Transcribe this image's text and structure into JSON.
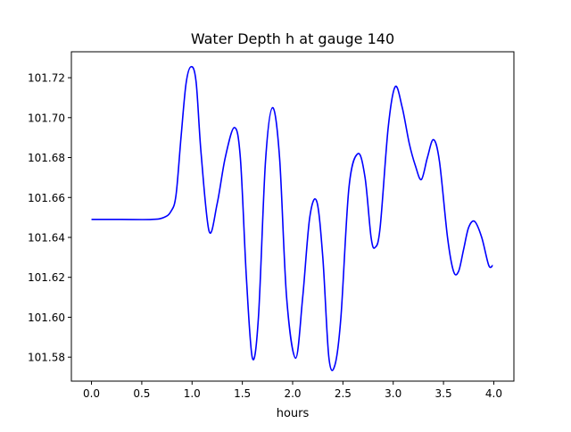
{
  "chart_data": {
    "type": "line",
    "title": "Water Depth h at gauge 140",
    "xlabel": "hours",
    "ylabel": "",
    "xlim": [
      -0.2,
      4.2
    ],
    "ylim": [
      101.568,
      101.733
    ],
    "xticks": [
      0.0,
      0.5,
      1.0,
      1.5,
      2.0,
      2.5,
      3.0,
      3.5,
      4.0
    ],
    "xtick_labels": [
      "0.0",
      "0.5",
      "1.0",
      "1.5",
      "2.0",
      "2.5",
      "3.0",
      "3.5",
      "4.0"
    ],
    "yticks": [
      101.58,
      101.6,
      101.62,
      101.64,
      101.66,
      101.68,
      101.7,
      101.72
    ],
    "ytick_labels": [
      "101.58",
      "101.60",
      "101.62",
      "101.64",
      "101.66",
      "101.68",
      "101.70",
      "101.72"
    ],
    "grid": false,
    "series": [
      {
        "name": "h",
        "color": "#0000ff",
        "x": [
          0.0,
          0.3,
          0.6,
          0.72,
          0.79,
          0.84,
          0.89,
          0.94,
          0.99,
          1.04,
          1.09,
          1.17,
          1.25,
          1.33,
          1.42,
          1.48,
          1.54,
          1.6,
          1.66,
          1.73,
          1.8,
          1.87,
          1.94,
          2.03,
          2.1,
          2.17,
          2.24,
          2.3,
          2.36,
          2.42,
          2.48,
          2.56,
          2.65,
          2.72,
          2.78,
          2.82,
          2.87,
          2.95,
          3.02,
          3.09,
          3.16,
          3.22,
          3.28,
          3.34,
          3.4,
          3.46,
          3.54,
          3.6,
          3.65,
          3.7,
          3.75,
          3.81,
          3.88,
          3.95,
          3.99
        ],
        "y": [
          101.649,
          101.649,
          101.649,
          101.65,
          101.653,
          101.661,
          101.69,
          101.717,
          101.7255,
          101.718,
          101.682,
          101.643,
          101.657,
          101.68,
          101.695,
          101.68,
          101.62,
          101.5795,
          101.6,
          101.678,
          101.705,
          101.68,
          101.61,
          101.5795,
          101.61,
          101.65,
          101.658,
          101.63,
          101.58,
          101.576,
          101.6,
          101.665,
          101.682,
          101.67,
          101.64,
          101.635,
          101.645,
          101.695,
          101.7155,
          101.705,
          101.687,
          101.676,
          101.669,
          101.68,
          101.689,
          101.678,
          101.64,
          101.623,
          101.623,
          101.634,
          101.645,
          101.648,
          101.64,
          101.626,
          101.626
        ]
      }
    ]
  }
}
